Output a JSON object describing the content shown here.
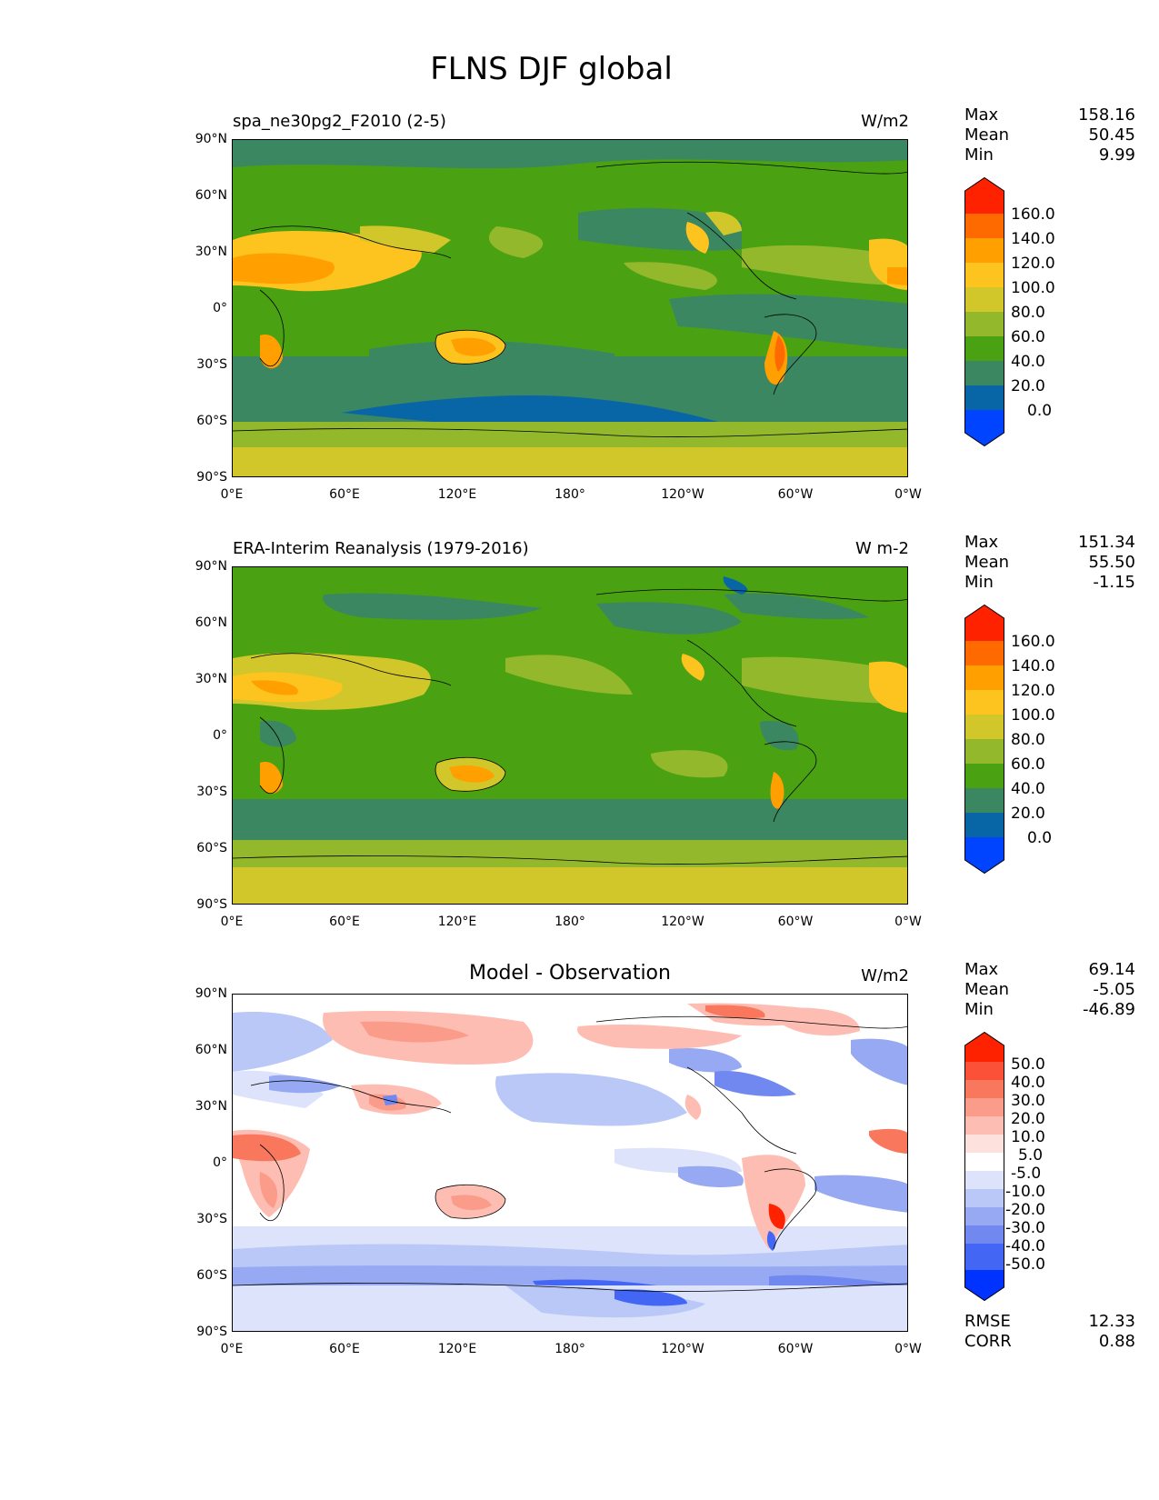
{
  "figure_title": "FLNS DJF global",
  "panels": [
    {
      "title_left": "spa_ne30pg2_F2010 (2-5)",
      "units": "W/m2",
      "stats": [
        [
          "Max",
          "158.16"
        ],
        [
          "Mean",
          "50.45"
        ],
        [
          "Min",
          "9.99"
        ]
      ],
      "colorbar_labels": [
        "160.0",
        "140.0",
        "120.0",
        "100.0",
        "80.0",
        "60.0",
        "40.0",
        "20.0",
        "0.0"
      ],
      "colors": [
        "#ff2200",
        "#ff6a00",
        "#ff9f00",
        "#fdc41f",
        "#d2c72a",
        "#94b82b",
        "#4aa213",
        "#3a8761",
        "#0966a6",
        "#0044ff"
      ]
    },
    {
      "title_left": "ERA-Interim Reanalysis (1979-2016)",
      "units": "W m-2",
      "stats": [
        [
          "Max",
          "151.34"
        ],
        [
          "Mean",
          "55.50"
        ],
        [
          "Min",
          "-1.15"
        ]
      ],
      "colorbar_labels": [
        "160.0",
        "140.0",
        "120.0",
        "100.0",
        "80.0",
        "60.0",
        "40.0",
        "20.0",
        "0.0"
      ],
      "colors": [
        "#ff2200",
        "#ff6a00",
        "#ff9f00",
        "#fdc41f",
        "#d2c72a",
        "#94b82b",
        "#4aa213",
        "#3a8761",
        "#0966a6",
        "#0044ff"
      ]
    },
    {
      "title_center": "Model - Observation",
      "units": "W/m2",
      "stats": [
        [
          "Max",
          "69.14"
        ],
        [
          "Mean",
          "-5.05"
        ],
        [
          "Min",
          "-46.89"
        ]
      ],
      "extra_stats": [
        [
          "RMSE",
          "12.33"
        ],
        [
          "CORR",
          "0.88"
        ]
      ],
      "colorbar_labels": [
        "50.0",
        "40.0",
        "30.0",
        "20.0",
        "10.0",
        "5.0",
        "-5.0",
        "-10.0",
        "-20.0",
        "-30.0",
        "-40.0",
        "-50.0"
      ],
      "colors": [
        "#ff2200",
        "#fb5139",
        "#f9775d",
        "#fb9c8a",
        "#fdbdb2",
        "#fde1dc",
        "#ffffff",
        "#dde3fb",
        "#b9c8f7",
        "#96a9f2",
        "#7088f0",
        "#4466f4",
        "#0033ff"
      ]
    }
  ],
  "lat_ticks": [
    "90°N",
    "60°N",
    "30°N",
    "0°",
    "30°S",
    "60°S",
    "90°S"
  ],
  "lon_ticks": [
    "0°E",
    "60°E",
    "120°E",
    "180°",
    "120°W",
    "60°W",
    "0°W"
  ]
}
